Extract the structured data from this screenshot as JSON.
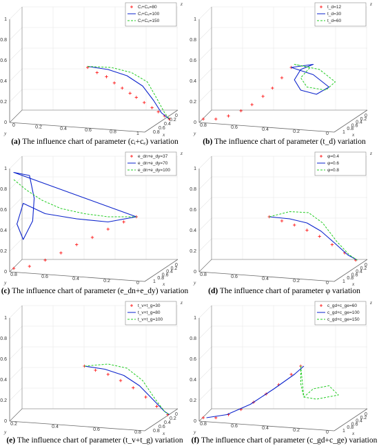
{
  "colors": {
    "series1": "#ff1a1a",
    "series2": "#0a22cc",
    "series3": "#22cc22",
    "axis": "#666666",
    "grid": "#e6e6e6"
  },
  "chart_data": [
    {
      "type": "line",
      "panel": "a",
      "caption_label": "(a)",
      "caption_text": "The influence chart of parameter (cᵢ+cₑ) variation",
      "legend": [
        "Cᵢ+Cₑ=80",
        "Cᵢ+Cₑ=100",
        "Cᵢ+Cₑ=150"
      ],
      "zlabel": "z",
      "xlabel": "x",
      "ylabel": "y",
      "z_ticks": [
        "0",
        "0.2",
        "0.4",
        "0.6",
        "0.8",
        "1"
      ],
      "x_ticks": [
        "0",
        "0.2",
        "0.4",
        "0.6",
        "0.8"
      ],
      "y_ticks": [
        "0",
        "0.2",
        "0.4",
        "0.6",
        "0.8",
        "1"
      ],
      "style": "default",
      "y_offset": 0,
      "series": [
        {
          "values": [
            [
              0.47,
              0.52
            ],
            [
              0.53,
              0.47
            ],
            [
              0.59,
              0.43
            ],
            [
              0.64,
              0.37
            ],
            [
              0.69,
              0.32
            ],
            [
              0.74,
              0.27
            ],
            [
              0.78,
              0.23
            ],
            [
              0.83,
              0.18
            ],
            [
              0.88,
              0.13
            ],
            [
              0.92,
              0.09
            ],
            [
              0.96,
              0.05
            ],
            [
              0.99,
              0.02
            ]
          ]
        },
        {
          "values": [
            [
              0.47,
              0.53
            ],
            [
              0.6,
              0.5
            ],
            [
              0.72,
              0.44
            ],
            [
              0.82,
              0.34
            ],
            [
              0.89,
              0.2
            ],
            [
              0.94,
              0.08
            ],
            [
              0.99,
              0.02
            ]
          ]
        },
        {
          "values": [
            [
              0.47,
              0.53
            ],
            [
              0.62,
              0.52
            ],
            [
              0.75,
              0.47
            ],
            [
              0.85,
              0.38
            ],
            [
              0.91,
              0.22
            ],
            [
              0.96,
              0.08
            ],
            [
              0.99,
              0.02
            ]
          ]
        }
      ]
    },
    {
      "type": "line",
      "panel": "b",
      "caption_label": "(b)",
      "caption_text": "The influence chart of parameter (t_d) variation",
      "legend": [
        "t_d=12",
        "t_d=30",
        "t_d=60"
      ],
      "zlabel": "z",
      "xlabel": "x",
      "ylabel": "y",
      "z_ticks": [
        "0",
        "0.2",
        "0.4",
        "0.6",
        "0.8",
        "1"
      ],
      "x_ticks": [
        "0",
        "0.2",
        "0.4",
        "0.6",
        "0.8",
        "1"
      ],
      "y_ticks": [
        "0.8",
        "0.6",
        "0.4",
        "0.2",
        "0"
      ],
      "style": "loops",
      "series": [
        {
          "values": [
            [
              0.0,
              0.02
            ],
            [
              0.08,
              0.02
            ],
            [
              0.16,
              0.05
            ],
            [
              0.24,
              0.1
            ],
            [
              0.31,
              0.16
            ],
            [
              0.38,
              0.24
            ],
            [
              0.44,
              0.32
            ],
            [
              0.5,
              0.42
            ],
            [
              0.56,
              0.52
            ]
          ]
        },
        {
          "loop": true,
          "values": [
            [
              0.56,
              0.52
            ],
            [
              0.7,
              0.45
            ],
            [
              0.8,
              0.33
            ],
            [
              0.72,
              0.26
            ],
            [
              0.62,
              0.3
            ],
            [
              0.58,
              0.4
            ],
            [
              0.62,
              0.5
            ],
            [
              0.7,
              0.55
            ]
          ]
        },
        {
          "loop": true,
          "values": [
            [
              0.58,
              0.55
            ],
            [
              0.74,
              0.5
            ],
            [
              0.84,
              0.38
            ],
            [
              0.78,
              0.3
            ],
            [
              0.66,
              0.33
            ],
            [
              0.62,
              0.42
            ],
            [
              0.68,
              0.52
            ]
          ]
        }
      ]
    },
    {
      "type": "line",
      "panel": "c",
      "caption_label": "(c)",
      "caption_text": "The influence chart of parameter (e_dn+e_dy) variation",
      "legend": [
        "e_dn+e_dy=37",
        "e_dn+e_dy=70",
        "e_dn+e_dy=100"
      ],
      "zlabel": "z",
      "xlabel": "x",
      "ylabel": "y",
      "z_ticks": [
        "0",
        "0.2",
        "0.4",
        "0.6",
        "0.8",
        "1"
      ],
      "x_ticks": [
        "0",
        "0.2",
        "0.4",
        "0.6",
        "0.8",
        "1"
      ],
      "y_ticks": [
        "0.8",
        "0.6",
        "0.4",
        "0.2",
        "0"
      ],
      "style": "bigloop",
      "series": [
        {
          "values": [
            [
              0.0,
              0.02
            ],
            [
              0.1,
              0.04
            ],
            [
              0.2,
              0.1
            ],
            [
              0.3,
              0.17
            ],
            [
              0.4,
              0.25
            ],
            [
              0.5,
              0.32
            ],
            [
              0.6,
              0.4
            ],
            [
              0.7,
              0.47
            ],
            [
              0.78,
              0.52
            ]
          ]
        },
        {
          "loop": true,
          "values": [
            [
              0.0,
              0.95
            ],
            [
              0.1,
              0.92
            ],
            [
              0.13,
              0.7
            ],
            [
              0.12,
              0.48
            ],
            [
              0.06,
              0.3
            ],
            [
              0.02,
              0.45
            ],
            [
              0.06,
              0.65
            ],
            [
              0.2,
              0.55
            ],
            [
              0.4,
              0.5
            ],
            [
              0.6,
              0.47
            ],
            [
              0.78,
              0.52
            ]
          ]
        },
        {
          "values": [
            [
              0.0,
              0.88
            ],
            [
              0.08,
              0.78
            ],
            [
              0.18,
              0.68
            ],
            [
              0.3,
              0.6
            ],
            [
              0.45,
              0.55
            ],
            [
              0.6,
              0.52
            ],
            [
              0.78,
              0.52
            ]
          ]
        }
      ]
    },
    {
      "type": "line",
      "panel": "d",
      "caption_label": "(d)",
      "caption_text": "The influence chart of parameter  φ  variation",
      "legend": [
        "φ=0.4",
        "φ=0.6",
        "φ=0.8"
      ],
      "zlabel": "z",
      "xlabel": "x",
      "ylabel": "y",
      "z_ticks": [
        "0",
        "0.2",
        "0.4",
        "0.6",
        "0.8",
        "1"
      ],
      "x_ticks": [
        "0",
        "0.2",
        "0.4",
        "0.6",
        "0.8",
        "1"
      ],
      "y_ticks": [
        "0.8",
        "0.6",
        "0.4",
        "0.2",
        "0"
      ],
      "style": "default",
      "series": [
        {
          "values": [
            [
              0.42,
              0.52
            ],
            [
              0.5,
              0.48
            ],
            [
              0.58,
              0.44
            ],
            [
              0.66,
              0.39
            ],
            [
              0.74,
              0.33
            ],
            [
              0.82,
              0.25
            ],
            [
              0.9,
              0.17
            ],
            [
              0.97,
              0.1
            ]
          ]
        },
        {
          "values": [
            [
              0.42,
              0.52
            ],
            [
              0.55,
              0.5
            ],
            [
              0.66,
              0.46
            ],
            [
              0.75,
              0.38
            ],
            [
              0.84,
              0.26
            ],
            [
              0.92,
              0.15
            ],
            [
              0.98,
              0.1
            ]
          ]
        },
        {
          "values": [
            [
              0.42,
              0.52
            ],
            [
              0.55,
              0.57
            ],
            [
              0.67,
              0.56
            ],
            [
              0.76,
              0.46
            ],
            [
              0.85,
              0.28
            ],
            [
              0.93,
              0.15
            ],
            [
              0.98,
              0.1
            ]
          ]
        }
      ]
    },
    {
      "type": "line",
      "panel": "e",
      "caption_label": "(e)",
      "caption_text": "The influence chart of parameter (t_v+t_g) variation",
      "legend": [
        "t_v+t_g=30",
        "t_v+t_g=80",
        "t_v+t_g=100"
      ],
      "zlabel": "z",
      "xlabel": "x",
      "ylabel": "y",
      "z_ticks": [
        "0",
        "0.2",
        "0.4",
        "0.6",
        "0.8",
        "1"
      ],
      "x_ticks": [
        "0",
        "0.2",
        "0.4",
        "0.6",
        "0.8"
      ],
      "y_ticks": [
        "0.2",
        "0.4",
        "0.6",
        "0.8"
      ],
      "style": "default",
      "series": [
        {
          "values": [
            [
              0.45,
              0.52
            ],
            [
              0.52,
              0.48
            ],
            [
              0.6,
              0.44
            ],
            [
              0.68,
              0.38
            ],
            [
              0.76,
              0.31
            ],
            [
              0.84,
              0.22
            ],
            [
              0.91,
              0.13
            ],
            [
              0.98,
              0.05
            ]
          ]
        },
        {
          "values": [
            [
              0.45,
              0.52
            ],
            [
              0.58,
              0.49
            ],
            [
              0.7,
              0.43
            ],
            [
              0.8,
              0.33
            ],
            [
              0.89,
              0.19
            ],
            [
              0.96,
              0.08
            ],
            [
              0.99,
              0.05
            ]
          ]
        },
        {
          "values": [
            [
              0.45,
              0.52
            ],
            [
              0.6,
              0.54
            ],
            [
              0.72,
              0.5
            ],
            [
              0.82,
              0.38
            ],
            [
              0.9,
              0.2
            ],
            [
              0.96,
              0.08
            ],
            [
              0.99,
              0.05
            ]
          ]
        }
      ]
    },
    {
      "type": "line",
      "panel": "f",
      "caption_label": "(f)",
      "caption_text": "The influence chart of parameter (c_gd+c_ge) variation",
      "legend": [
        "c_gd+c_ge=60",
        "c_gd+c_ge=100",
        "c_gd+c_ge=150"
      ],
      "zlabel": "z",
      "xlabel": "x",
      "ylabel": "y",
      "z_ticks": [
        "0",
        "0.2",
        "0.4",
        "0.6",
        "0.8",
        "1"
      ],
      "x_ticks": [
        "0",
        "0.2",
        "0.4",
        "0.6",
        "0.8",
        "1"
      ],
      "y_ticks": [
        "0.8",
        "0.6",
        "0.4",
        "0.2",
        "0"
      ],
      "style": "loops",
      "series": [
        {
          "values": [
            [
              0.0,
              0.02
            ],
            [
              0.08,
              0.02
            ],
            [
              0.16,
              0.05
            ],
            [
              0.24,
              0.1
            ],
            [
              0.32,
              0.17
            ],
            [
              0.4,
              0.25
            ],
            [
              0.48,
              0.34
            ],
            [
              0.56,
              0.44
            ],
            [
              0.62,
              0.52
            ]
          ]
        },
        {
          "values": [
            [
              0.02,
              0.02
            ],
            [
              0.15,
              0.05
            ],
            [
              0.3,
              0.15
            ],
            [
              0.45,
              0.3
            ],
            [
              0.58,
              0.44
            ],
            [
              0.64,
              0.52
            ]
          ]
        },
        {
          "loop": true,
          "values": [
            [
              0.62,
              0.52
            ],
            [
              0.62,
              0.35
            ],
            [
              0.64,
              0.22
            ],
            [
              0.72,
              0.2
            ],
            [
              0.86,
              0.24
            ],
            [
              0.8,
              0.33
            ],
            [
              0.7,
              0.3
            ],
            [
              0.64,
              0.22
            ]
          ]
        }
      ]
    }
  ]
}
